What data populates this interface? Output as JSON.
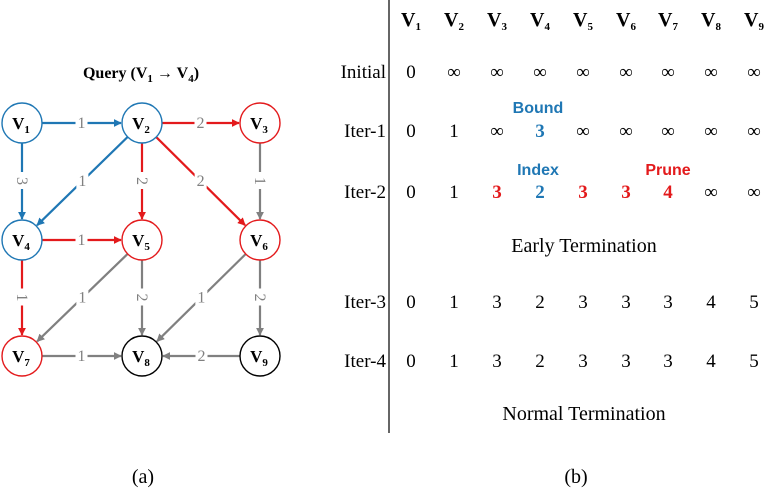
{
  "colors": {
    "blue": "#1f77b4",
    "red": "#e31a1c",
    "gray": "#808080",
    "black": "#000000"
  },
  "graph": {
    "query": {
      "prefix": "Query (V",
      "src_sub": "1",
      "arrow": " → V",
      "dst_sub": "4",
      "suffix": ")"
    },
    "nodes": [
      {
        "id": "v1",
        "main": "V",
        "sub": "1",
        "color": "blue"
      },
      {
        "id": "v2",
        "main": "V",
        "sub": "2",
        "color": "blue"
      },
      {
        "id": "v3",
        "main": "V",
        "sub": "3",
        "color": "red"
      },
      {
        "id": "v4",
        "main": "V",
        "sub": "4",
        "color": "blue"
      },
      {
        "id": "v5",
        "main": "V",
        "sub": "5",
        "color": "red"
      },
      {
        "id": "v6",
        "main": "V",
        "sub": "6",
        "color": "red"
      },
      {
        "id": "v7",
        "main": "V",
        "sub": "7",
        "color": "red"
      },
      {
        "id": "v8",
        "main": "V",
        "sub": "8",
        "color": "black"
      },
      {
        "id": "v9",
        "main": "V",
        "sub": "9",
        "color": "black"
      }
    ],
    "edges": [
      {
        "from": "v1",
        "to": "v2",
        "weight": "1",
        "color": "blue"
      },
      {
        "from": "v1",
        "to": "v4",
        "weight": "3",
        "color": "blue"
      },
      {
        "from": "v2",
        "to": "v4",
        "weight": "1",
        "color": "blue"
      },
      {
        "from": "v2",
        "to": "v3",
        "weight": "2",
        "color": "red"
      },
      {
        "from": "v2",
        "to": "v5",
        "weight": "2",
        "color": "red"
      },
      {
        "from": "v2",
        "to": "v6",
        "weight": "2",
        "color": "red"
      },
      {
        "from": "v3",
        "to": "v6",
        "weight": "1",
        "color": "gray"
      },
      {
        "from": "v4",
        "to": "v5",
        "weight": "1",
        "color": "red"
      },
      {
        "from": "v4",
        "to": "v7",
        "weight": "1",
        "color": "red"
      },
      {
        "from": "v5",
        "to": "v7",
        "weight": "1",
        "color": "gray"
      },
      {
        "from": "v5",
        "to": "v8",
        "weight": "2",
        "color": "gray"
      },
      {
        "from": "v6",
        "to": "v8",
        "weight": "1",
        "color": "gray"
      },
      {
        "from": "v6",
        "to": "v9",
        "weight": "2",
        "color": "gray"
      },
      {
        "from": "v7",
        "to": "v8",
        "weight": "1",
        "color": "gray"
      },
      {
        "from": "v9",
        "to": "v8",
        "weight": "2",
        "color": "gray"
      }
    ]
  },
  "table": {
    "columns": [
      {
        "main": "V",
        "sub": "1"
      },
      {
        "main": "V",
        "sub": "2"
      },
      {
        "main": "V",
        "sub": "3"
      },
      {
        "main": "V",
        "sub": "4"
      },
      {
        "main": "V",
        "sub": "5"
      },
      {
        "main": "V",
        "sub": "6"
      },
      {
        "main": "V",
        "sub": "7"
      },
      {
        "main": "V",
        "sub": "8"
      },
      {
        "main": "V",
        "sub": "9"
      }
    ],
    "rows": [
      {
        "label": "Initial",
        "cells": [
          {
            "v": "0"
          },
          {
            "v": "∞"
          },
          {
            "v": "∞"
          },
          {
            "v": "∞"
          },
          {
            "v": "∞"
          },
          {
            "v": "∞"
          },
          {
            "v": "∞"
          },
          {
            "v": "∞"
          },
          {
            "v": "∞"
          }
        ]
      },
      {
        "label": "Iter-1",
        "cells": [
          {
            "v": "0"
          },
          {
            "v": "1"
          },
          {
            "v": "∞"
          },
          {
            "v": "3",
            "color": "blue",
            "bold": true
          },
          {
            "v": "∞"
          },
          {
            "v": "∞"
          },
          {
            "v": "∞"
          },
          {
            "v": "∞"
          },
          {
            "v": "∞"
          }
        ]
      },
      {
        "label": "Iter-2",
        "cells": [
          {
            "v": "0"
          },
          {
            "v": "1"
          },
          {
            "v": "3",
            "color": "red",
            "bold": true
          },
          {
            "v": "2",
            "color": "blue",
            "bold": true
          },
          {
            "v": "3",
            "color": "red",
            "bold": true
          },
          {
            "v": "3",
            "color": "red",
            "bold": true
          },
          {
            "v": "4",
            "color": "red",
            "bold": true
          },
          {
            "v": "∞"
          },
          {
            "v": "∞"
          }
        ]
      },
      {
        "label": "Iter-3",
        "cells": [
          {
            "v": "0"
          },
          {
            "v": "1"
          },
          {
            "v": "3"
          },
          {
            "v": "2"
          },
          {
            "v": "3"
          },
          {
            "v": "3"
          },
          {
            "v": "3"
          },
          {
            "v": "4"
          },
          {
            "v": "5"
          }
        ]
      },
      {
        "label": "Iter-4",
        "cells": [
          {
            "v": "0"
          },
          {
            "v": "1"
          },
          {
            "v": "3"
          },
          {
            "v": "2"
          },
          {
            "v": "3"
          },
          {
            "v": "3"
          },
          {
            "v": "3"
          },
          {
            "v": "4"
          },
          {
            "v": "5"
          }
        ]
      }
    ],
    "annotations": [
      {
        "text": "Bound",
        "color": "blue"
      },
      {
        "text": "Index",
        "color": "blue"
      },
      {
        "text": "Prune",
        "color": "red"
      }
    ],
    "early_termination": "Early Termination",
    "normal_termination": "Normal Termination"
  },
  "captions": {
    "a": "(a)",
    "b": "(b)"
  }
}
